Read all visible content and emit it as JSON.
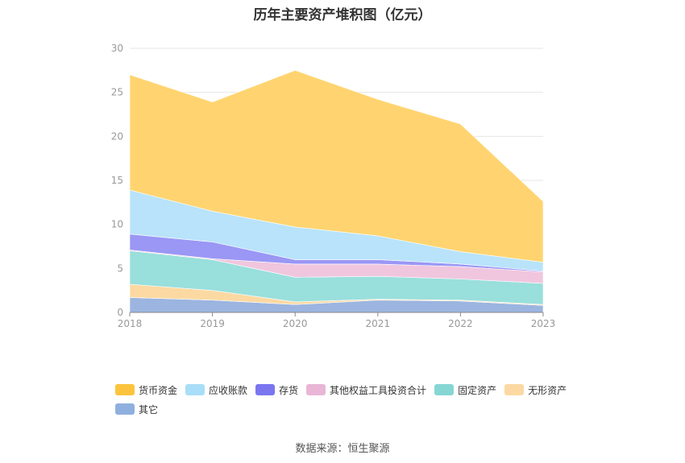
{
  "chart_data": {
    "type": "area",
    "stacked": true,
    "title": "历年主要资产堆积图（亿元）",
    "x": [
      "2018",
      "2019",
      "2020",
      "2021",
      "2022",
      "2023"
    ],
    "ylim": [
      0,
      30
    ],
    "yticks": [
      0,
      5,
      10,
      15,
      20,
      25,
      30
    ],
    "grid": true,
    "legend_position": "bottom",
    "series": [
      {
        "name": "其它",
        "color": "#9bb5e0",
        "values": [
          1.7,
          1.4,
          0.9,
          1.4,
          1.3,
          0.8
        ]
      },
      {
        "name": "无形资产",
        "color": "#fcd9a2",
        "values": [
          1.5,
          1.1,
          0.3,
          0.1,
          0.1,
          0.1
        ]
      },
      {
        "name": "固定资产",
        "color": "#99dfdc",
        "values": [
          3.8,
          3.5,
          2.8,
          2.6,
          2.4,
          2.4
        ]
      },
      {
        "name": "其他权益工具投资合计",
        "color": "#f0c6de",
        "values": [
          0.1,
          0.1,
          1.5,
          1.4,
          1.4,
          1.3
        ]
      },
      {
        "name": "存货",
        "color": "#9a97f5",
        "values": [
          1.8,
          1.9,
          0.5,
          0.5,
          0.3,
          0.1
        ]
      },
      {
        "name": "应收账款",
        "color": "#b8e3fa",
        "values": [
          5.0,
          3.5,
          3.7,
          2.7,
          1.4,
          1.0
        ]
      },
      {
        "name": "货币资金",
        "color": "#ffd470",
        "values": [
          13.1,
          12.4,
          17.8,
          15.5,
          14.5,
          6.9
        ]
      }
    ]
  },
  "legend": [
    {
      "label": "货币资金",
      "color": "#fcc43e"
    },
    {
      "label": "应收账款",
      "color": "#a8def7"
    },
    {
      "label": "存货",
      "color": "#7a76f0"
    },
    {
      "label": "其他权益工具投资合计",
      "color": "#e9b6d6"
    },
    {
      "label": "固定资产",
      "color": "#86d6d4"
    },
    {
      "label": "无形资产",
      "color": "#fcd9a2"
    },
    {
      "label": "其它",
      "color": "#8fb0de"
    }
  ],
  "source": "数据来源：恒生聚源"
}
